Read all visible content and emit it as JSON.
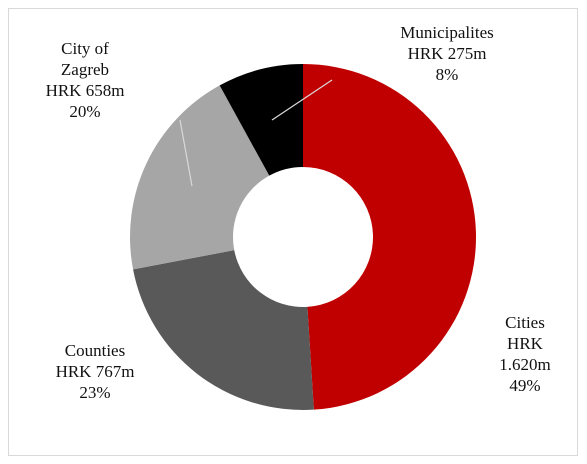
{
  "chart_data": {
    "type": "donut",
    "categories": [
      "Cities",
      "Counties",
      "City of Zagreb",
      "Municipalites"
    ],
    "amount_labels": [
      "HRK 1.620m",
      "HRK 767m",
      "HRK 658m",
      "HRK 275m"
    ],
    "values": [
      49,
      23,
      20,
      8
    ],
    "value_labels": [
      "49%",
      "23%",
      "20%",
      "8%"
    ],
    "colors": [
      "#c00000",
      "#595959",
      "#a6a6a6",
      "#000000"
    ]
  }
}
